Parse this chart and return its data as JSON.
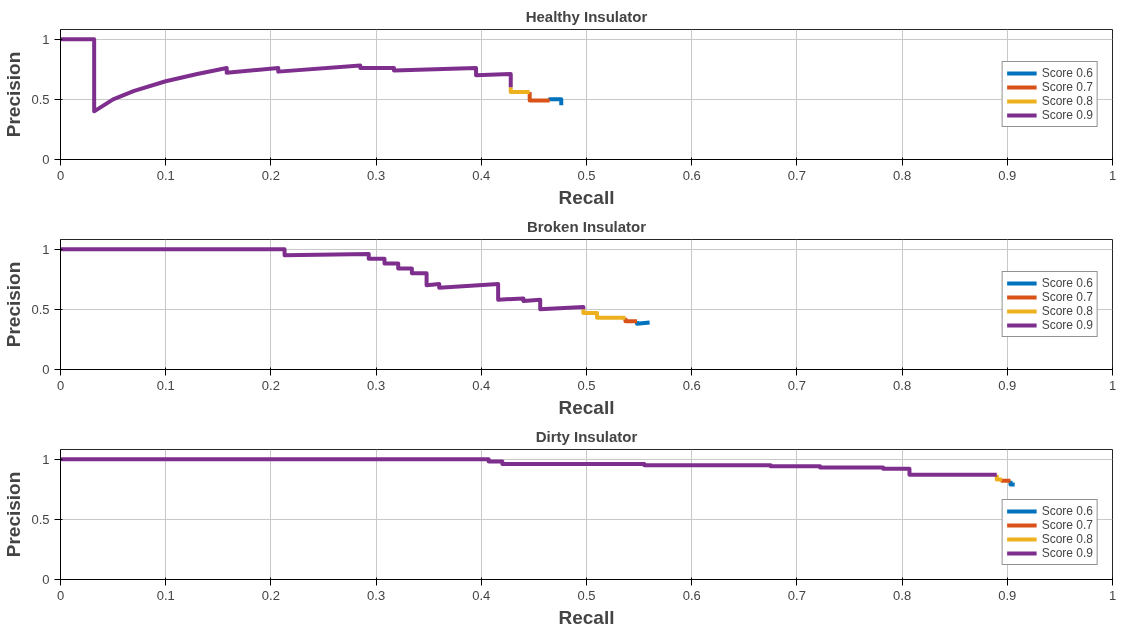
{
  "chart_data": [
    {
      "type": "line",
      "title": "Healthy Insulator",
      "xlabel": "Recall",
      "ylabel": "Precision",
      "xlim": [
        0,
        1
      ],
      "ylim": [
        0,
        1.08
      ],
      "xticks": [
        0,
        0.1,
        0.2,
        0.3,
        0.4,
        0.5,
        0.6,
        0.7,
        0.8,
        0.9,
        1
      ],
      "yticks": [
        0,
        0.5,
        1
      ],
      "grid": true,
      "legend": "right",
      "line_style": "solid",
      "marker": "none",
      "series": [
        {
          "name": "Score 0.6",
          "color": "#0072bd",
          "x": [
            0.465,
            0.465,
            0.476,
            0.476
          ],
          "values": [
            0.49,
            0.5,
            0.5,
            0.45
          ]
        },
        {
          "name": "Score 0.7",
          "color": "#d95319",
          "x": [
            0.446,
            0.446,
            0.465
          ],
          "values": [
            0.56,
            0.49,
            0.49
          ]
        },
        {
          "name": "Score 0.8",
          "color": "#edb120",
          "x": [
            0.428,
            0.428,
            0.446
          ],
          "values": [
            0.6,
            0.56,
            0.56
          ]
        },
        {
          "name": "Score 0.9",
          "color": "#7e2f8e",
          "x": [
            0,
            0.032,
            0.032,
            0.05,
            0.07,
            0.1,
            0.13,
            0.158,
            0.158,
            0.207,
            0.207,
            0.285,
            0.285,
            0.317,
            0.317,
            0.395,
            0.395,
            0.428,
            0.428
          ],
          "values": [
            1,
            1,
            0.4,
            0.5,
            0.57,
            0.65,
            0.71,
            0.76,
            0.72,
            0.76,
            0.73,
            0.78,
            0.76,
            0.76,
            0.74,
            0.76,
            0.7,
            0.71,
            0.6
          ]
        }
      ]
    },
    {
      "type": "line",
      "title": "Broken Insulator",
      "xlabel": "Recall",
      "ylabel": "Precision",
      "xlim": [
        0,
        1
      ],
      "ylim": [
        0,
        1.08
      ],
      "xticks": [
        0,
        0.1,
        0.2,
        0.3,
        0.4,
        0.5,
        0.6,
        0.7,
        0.8,
        0.9,
        1
      ],
      "yticks": [
        0,
        0.5,
        1
      ],
      "grid": true,
      "legend": "right",
      "line_style": "solid",
      "marker": "none",
      "series": [
        {
          "name": "Score 0.6",
          "color": "#0072bd",
          "x": [
            0.548,
            0.548,
            0.56
          ],
          "values": [
            0.4,
            0.38,
            0.39
          ]
        },
        {
          "name": "Score 0.7",
          "color": "#d95319",
          "x": [
            0.537,
            0.537,
            0.548
          ],
          "values": [
            0.43,
            0.4,
            0.4
          ]
        },
        {
          "name": "Score 0.8",
          "color": "#edb120",
          "x": [
            0.497,
            0.497,
            0.51,
            0.51,
            0.537
          ],
          "values": [
            0.5,
            0.47,
            0.47,
            0.43,
            0.43
          ]
        },
        {
          "name": "Score 0.9",
          "color": "#7e2f8e",
          "x": [
            0,
            0.213,
            0.213,
            0.293,
            0.293,
            0.308,
            0.308,
            0.321,
            0.321,
            0.334,
            0.334,
            0.348,
            0.348,
            0.36,
            0.36,
            0.416,
            0.416,
            0.44,
            0.44,
            0.456,
            0.456,
            0.497,
            0.497
          ],
          "values": [
            1,
            1,
            0.95,
            0.96,
            0.92,
            0.92,
            0.88,
            0.88,
            0.84,
            0.84,
            0.8,
            0.8,
            0.7,
            0.71,
            0.68,
            0.71,
            0.58,
            0.59,
            0.57,
            0.58,
            0.5,
            0.52,
            0.5
          ]
        }
      ]
    },
    {
      "type": "line",
      "title": "Dirty Insulator",
      "xlabel": "Recall",
      "ylabel": "Precision",
      "xlim": [
        0,
        1
      ],
      "ylim": [
        0,
        1.08
      ],
      "xticks": [
        0,
        0.1,
        0.2,
        0.3,
        0.4,
        0.5,
        0.6,
        0.7,
        0.8,
        0.9,
        1
      ],
      "yticks": [
        0,
        0.5,
        1
      ],
      "grid": true,
      "legend": "bottom right",
      "line_style": "solid",
      "marker": "none",
      "series": [
        {
          "name": "Score 0.6",
          "color": "#0072bd",
          "x": [
            0.903,
            0.903,
            0.907
          ],
          "values": [
            0.82,
            0.79,
            0.79
          ]
        },
        {
          "name": "Score 0.7",
          "color": "#d95319",
          "x": [
            0.895,
            0.895,
            0.903
          ],
          "values": [
            0.83,
            0.82,
            0.82
          ]
        },
        {
          "name": "Score 0.8",
          "color": "#edb120",
          "x": [
            0.89,
            0.89,
            0.895
          ],
          "values": [
            0.87,
            0.83,
            0.83
          ]
        },
        {
          "name": "Score 0.9",
          "color": "#7e2f8e",
          "x": [
            0,
            0.407,
            0.407,
            0.42,
            0.42,
            0.555,
            0.555,
            0.675,
            0.675,
            0.722,
            0.722,
            0.782,
            0.782,
            0.807,
            0.807,
            0.89
          ],
          "values": [
            1,
            1,
            0.98,
            0.98,
            0.96,
            0.96,
            0.95,
            0.95,
            0.94,
            0.94,
            0.93,
            0.93,
            0.92,
            0.92,
            0.87,
            0.87
          ]
        }
      ]
    }
  ]
}
